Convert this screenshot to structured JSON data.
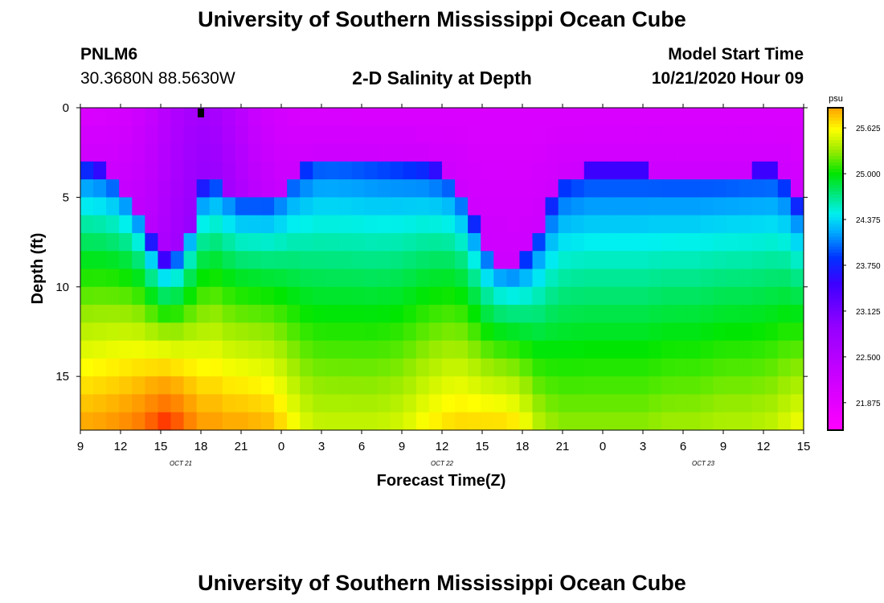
{
  "header": {
    "title": "University of Southern Mississippi Ocean Cube",
    "station_id": "PNLM6",
    "station_coords": "30.3680N 88.5630W",
    "plot_title": "2-D Salinity at Depth",
    "model_start_label": "Model Start Time",
    "model_start_value": "10/21/2020 Hour 09"
  },
  "footer": {
    "title": "University of Southern Mississippi Ocean Cube"
  },
  "colors": {
    "background": "#ffffff",
    "text": "#000000"
  },
  "chart_data": {
    "type": "heatmap",
    "title": "2-D Salinity at Depth",
    "xlabel": "Forecast Time(Z)",
    "ylabel": "Depth (ft)",
    "x_hours": [
      0,
      3,
      6,
      9,
      12,
      15,
      18,
      21,
      24,
      27,
      30,
      33,
      36,
      39,
      42,
      45,
      48,
      51,
      54
    ],
    "xlim": [
      0,
      54
    ],
    "x_tick_labels": [
      "9",
      "12",
      "15",
      "18",
      "21",
      "0",
      "3",
      "6",
      "9",
      "12",
      "15",
      "18",
      "21",
      "0",
      "3",
      "6",
      "9",
      "12",
      "15"
    ],
    "date_labels": [
      {
        "hour": 7.5,
        "text": "OCT 21"
      },
      {
        "hour": 27,
        "text": "OCT 22"
      },
      {
        "hour": 46.5,
        "text": "OCT 23"
      }
    ],
    "ylim": [
      0,
      18
    ],
    "y_ticks": [
      0,
      5,
      10,
      15
    ],
    "y_tick_labels": [
      "0",
      "5",
      "10",
      "15"
    ],
    "current_time_marker_hour": 9,
    "colorbar": {
      "unit": "psu",
      "min": 21.5,
      "max": 25.9,
      "tick_values": [
        21.875,
        22.5,
        23.125,
        23.75,
        24.375,
        25.0,
        25.625
      ],
      "tick_labels": [
        "21.875",
        "22.500",
        "23.125",
        "23.750",
        "24.375",
        "25.000",
        "25.625"
      ]
    },
    "profile_hours": [
      0,
      2,
      4,
      5,
      6,
      7,
      8,
      9,
      10,
      11,
      12,
      14,
      15,
      16,
      17,
      18,
      20,
      22,
      24,
      26,
      28,
      29,
      30,
      31,
      32,
      33,
      34,
      35,
      36,
      38,
      40,
      42,
      44,
      46,
      48,
      50,
      52,
      53,
      54
    ],
    "interface_depths_ft": [
      3.2,
      3.6,
      5.0,
      7.0,
      8.5,
      8.5,
      7.0,
      4.5,
      4.0,
      4.5,
      5.0,
      5.0,
      4.5,
      3.6,
      3.0,
      2.5,
      2.6,
      2.8,
      3.0,
      3.3,
      4.0,
      5.5,
      7.5,
      8.5,
      8.8,
      8.5,
      7.5,
      5.5,
      4.0,
      3.5,
      3.5,
      3.5,
      3.6,
      3.6,
      3.6,
      3.5,
      3.5,
      4.5,
      6.0
    ],
    "bottom_salinity_psu": [
      25.9,
      25.95,
      26.05,
      26.15,
      26.3,
      26.25,
      26.1,
      25.95,
      25.95,
      25.9,
      25.9,
      25.85,
      25.75,
      25.6,
      25.5,
      25.45,
      25.45,
      25.45,
      25.5,
      25.65,
      25.75,
      25.75,
      25.75,
      25.75,
      25.75,
      25.65,
      25.45,
      25.35,
      25.3,
      25.3,
      25.3,
      25.3,
      25.35,
      25.35,
      25.4,
      25.4,
      25.45,
      25.55,
      25.6
    ]
  }
}
